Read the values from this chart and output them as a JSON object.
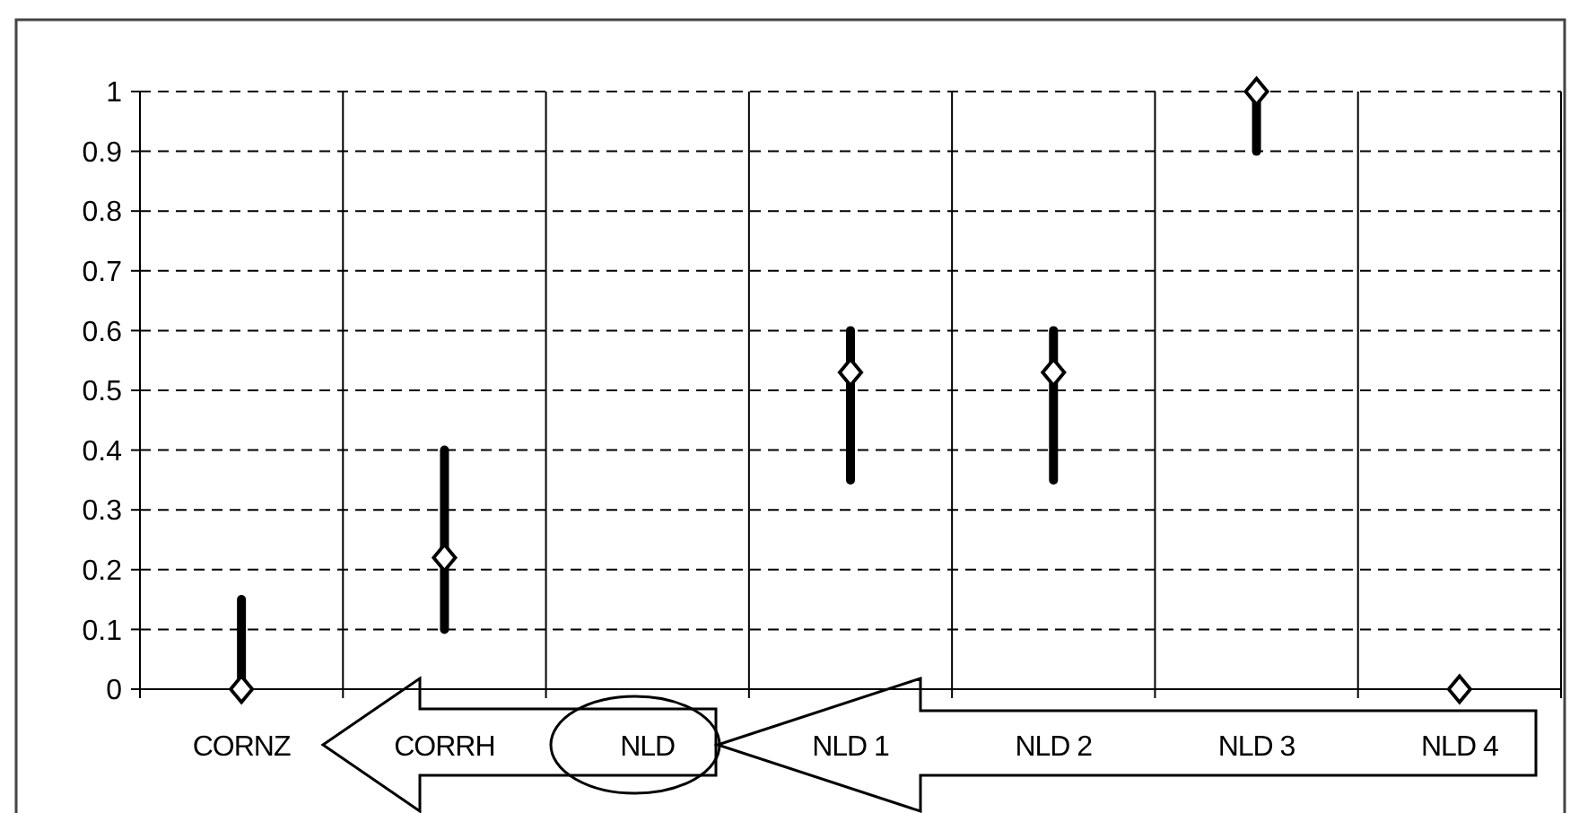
{
  "chart_data": {
    "type": "scatter",
    "categories": [
      "CORNZ",
      "CORRH",
      "NLD",
      "NLD 1",
      "NLD 2",
      "NLD 3",
      "NLD 4"
    ],
    "series": [
      {
        "color": "#ffffff",
        "values": [
          0,
          0.22,
          null,
          0.53,
          0.53,
          1,
          0
        ],
        "errors": [
          [
            0,
            0.15
          ],
          [
            0.1,
            0.4
          ],
          null,
          [
            0.35,
            0.6
          ],
          [
            0.35,
            0.6
          ],
          [
            0.9,
            1
          ],
          null
        ]
      }
    ],
    "ylim": [
      0,
      1
    ],
    "yticks": [
      0,
      0.1,
      0.2,
      0.3,
      0.4,
      0.5,
      0.6,
      0.7,
      0.8,
      0.9,
      1
    ],
    "grid": true,
    "marker": "diamond"
  }
}
